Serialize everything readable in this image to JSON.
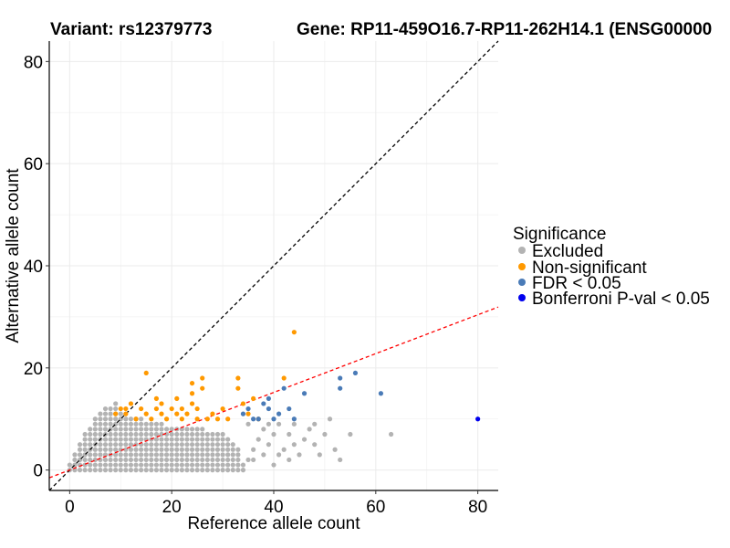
{
  "chart_data": {
    "type": "scatter",
    "title_left": "Variant: rs12379773",
    "title_right": "Gene: RP11-459O16.7-RP11-262H14.1 (ENSG00000",
    "xlabel": "Reference allele count",
    "ylabel": "Alternative allele count",
    "xlim": [
      -4,
      84
    ],
    "ylim": [
      -4,
      84
    ],
    "xticks": [
      0,
      20,
      40,
      60,
      80
    ],
    "yticks": [
      0,
      20,
      40,
      60,
      80
    ],
    "grid": true,
    "legend": {
      "title": "Significance",
      "position": "right",
      "entries": [
        {
          "label": "Excluded",
          "color": "#b3b3b3"
        },
        {
          "label": "Non-significant",
          "color": "#ff9900"
        },
        {
          "label": "FDR < 0.05",
          "color": "#4a7bb7"
        },
        {
          "label": "Bonferroni P-val < 0.05",
          "color": "#0000ee"
        }
      ]
    },
    "reference_lines": [
      {
        "name": "identity",
        "slope": 1,
        "intercept": 0,
        "color": "#000000",
        "style": "dashed"
      },
      {
        "name": "fit",
        "slope": 0.38,
        "intercept": 0,
        "color": "#ff0000",
        "style": "dashed"
      }
    ],
    "excluded_region": {
      "description": "dense grid of excluded points",
      "x_max_by_y": [
        [
          0,
          34
        ],
        [
          1,
          34
        ],
        [
          2,
          33
        ],
        [
          3,
          33
        ],
        [
          4,
          33
        ],
        [
          5,
          32
        ],
        [
          6,
          31
        ],
        [
          7,
          30
        ],
        [
          8,
          26
        ],
        [
          9,
          18
        ],
        [
          10,
          14
        ],
        [
          11,
          10
        ],
        [
          12,
          9
        ],
        [
          13,
          9
        ]
      ],
      "x_min_by_y": [
        [
          0,
          0
        ],
        [
          1,
          0
        ],
        [
          2,
          1
        ],
        [
          3,
          1
        ],
        [
          4,
          2
        ],
        [
          5,
          2
        ],
        [
          6,
          3
        ],
        [
          7,
          3
        ],
        [
          8,
          4
        ],
        [
          9,
          5
        ],
        [
          10,
          5
        ],
        [
          11,
          6
        ],
        [
          12,
          7
        ],
        [
          13,
          9
        ]
      ]
    },
    "series": [
      {
        "name": "Excluded",
        "color": "#b3b3b3",
        "points": [
          [
            35,
            2
          ],
          [
            36,
            4
          ],
          [
            37,
            6
          ],
          [
            38,
            3
          ],
          [
            38,
            8
          ],
          [
            39,
            5
          ],
          [
            40,
            1
          ],
          [
            40,
            7
          ],
          [
            41,
            9
          ],
          [
            42,
            4
          ],
          [
            43,
            2
          ],
          [
            43,
            7
          ],
          [
            44,
            5
          ],
          [
            44,
            9
          ],
          [
            45,
            3
          ],
          [
            46,
            6
          ],
          [
            47,
            8
          ],
          [
            48,
            5
          ],
          [
            48,
            9
          ],
          [
            49,
            3
          ],
          [
            50,
            7
          ],
          [
            51,
            10
          ],
          [
            52,
            4
          ],
          [
            53,
            2
          ],
          [
            55,
            7
          ],
          [
            63,
            7
          ],
          [
            35,
            9
          ],
          [
            36,
            2
          ],
          [
            37,
            10
          ],
          [
            39,
            9
          ],
          [
            41,
            3
          ]
        ]
      },
      {
        "name": "Non-significant",
        "color": "#ff9900",
        "points": [
          [
            9,
            11
          ],
          [
            10,
            12
          ],
          [
            11,
            11
          ],
          [
            11,
            12
          ],
          [
            12,
            13
          ],
          [
            13,
            10
          ],
          [
            14,
            12
          ],
          [
            15,
            11
          ],
          [
            15,
            19
          ],
          [
            16,
            10
          ],
          [
            17,
            12
          ],
          [
            17,
            14
          ],
          [
            18,
            11
          ],
          [
            18,
            13
          ],
          [
            19,
            10
          ],
          [
            20,
            12
          ],
          [
            21,
            11
          ],
          [
            21,
            14
          ],
          [
            22,
            10
          ],
          [
            22,
            12
          ],
          [
            23,
            11
          ],
          [
            24,
            13
          ],
          [
            24,
            15
          ],
          [
            24,
            17
          ],
          [
            25,
            10
          ],
          [
            25,
            12
          ],
          [
            26,
            16
          ],
          [
            26,
            18
          ],
          [
            27,
            10
          ],
          [
            28,
            11
          ],
          [
            29,
            10
          ],
          [
            30,
            12
          ],
          [
            31,
            10
          ],
          [
            33,
            16
          ],
          [
            33,
            18
          ],
          [
            34,
            13
          ],
          [
            35,
            11
          ],
          [
            36,
            14
          ],
          [
            42,
            18
          ],
          [
            44,
            27
          ],
          [
            37,
            10
          ]
        ]
      },
      {
        "name": "FDR < 0.05",
        "color": "#4a7bb7",
        "points": [
          [
            34,
            11
          ],
          [
            35,
            12
          ],
          [
            36,
            10
          ],
          [
            37,
            10
          ],
          [
            38,
            13
          ],
          [
            39,
            14
          ],
          [
            39,
            12
          ],
          [
            40,
            10
          ],
          [
            41,
            11
          ],
          [
            42,
            16
          ],
          [
            43,
            12
          ],
          [
            44,
            10
          ],
          [
            46,
            15
          ],
          [
            53,
            18
          ],
          [
            53,
            16
          ],
          [
            56,
            19
          ],
          [
            61,
            15
          ]
        ]
      },
      {
        "name": "Bonferroni P-val < 0.05",
        "color": "#0000ee",
        "points": [
          [
            80,
            10
          ]
        ]
      }
    ]
  }
}
